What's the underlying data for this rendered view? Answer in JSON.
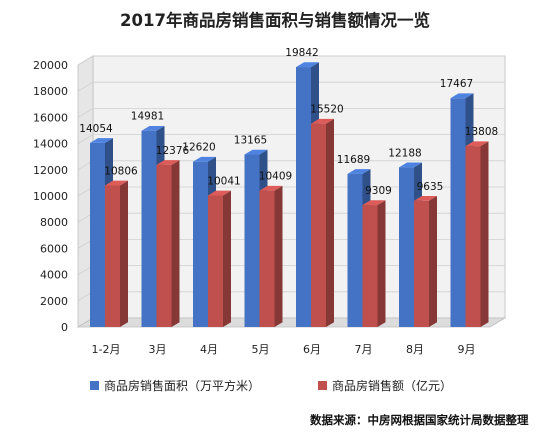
{
  "colors": {
    "series1": "#4472C4",
    "series2": "#C0504D",
    "grid": "#d0d0d0",
    "wall": "#f2f2f2"
  },
  "chart_data": {
    "type": "bar",
    "title": "2017年商品房销售面积与销售额情况一览",
    "categories": [
      "1-2月",
      "3月",
      "4月",
      "5月",
      "6月",
      "7月",
      "8月",
      "9月"
    ],
    "series": [
      {
        "name": "商品房销售面积（万平方米）",
        "values": [
          14054,
          14981,
          12620,
          13165,
          19842,
          11689,
          12188,
          17467
        ]
      },
      {
        "name": "商品房销售额（亿元）",
        "values": [
          10806,
          12376,
          10041,
          10409,
          15520,
          9309,
          9635,
          13808
        ]
      }
    ],
    "ylim": [
      0,
      20000
    ],
    "yticks": [
      "0",
      "2000",
      "4000",
      "6000",
      "8000",
      "10000",
      "12000",
      "14000",
      "16000",
      "18000",
      "20000"
    ],
    "grid": true,
    "legend_position": "bottom",
    "style": "3d-clustered-column",
    "source_note": "数据来源：中房网根据国家统计局数据整理"
  }
}
